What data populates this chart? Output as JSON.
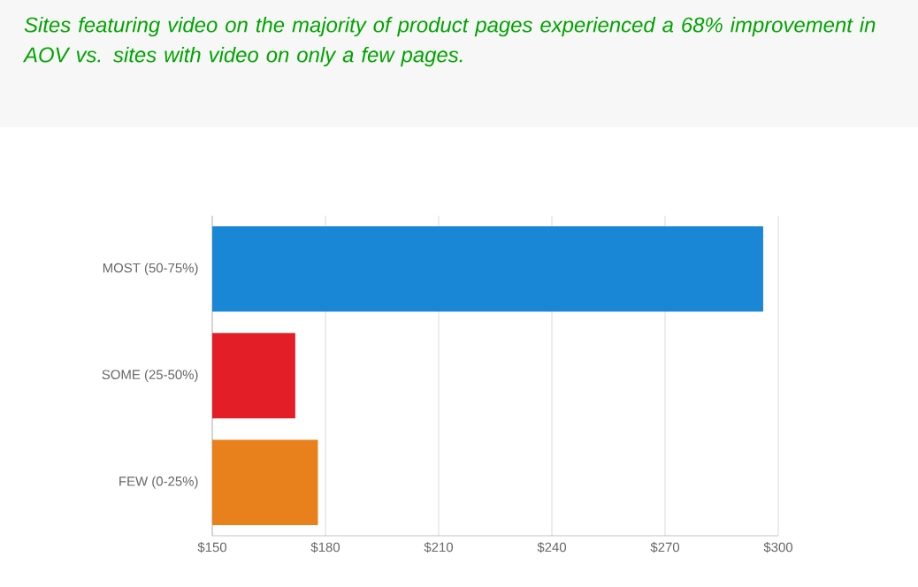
{
  "chart_data": {
    "type": "bar",
    "orientation": "horizontal",
    "title": "Sites featuring video on the majority of product pages experienced a 68% improvement in AOV vs. sites with video on only a few pages.",
    "categories": [
      "MOST (50-75%)",
      "SOME (25-50%)",
      "FEW (0-25%)"
    ],
    "values": [
      296,
      172,
      178
    ],
    "colors": [
      "#1a86d6",
      "#e31e26",
      "#e8801c"
    ],
    "xlim": [
      150,
      300
    ],
    "xticks": [
      {
        "value": 150,
        "label": "$150"
      },
      {
        "value": 180,
        "label": "$180"
      },
      {
        "value": 210,
        "label": "$210"
      },
      {
        "value": 240,
        "label": "$240"
      },
      {
        "value": 270,
        "label": "$270"
      },
      {
        "value": 300,
        "label": "$300"
      }
    ],
    "grid": "x"
  }
}
